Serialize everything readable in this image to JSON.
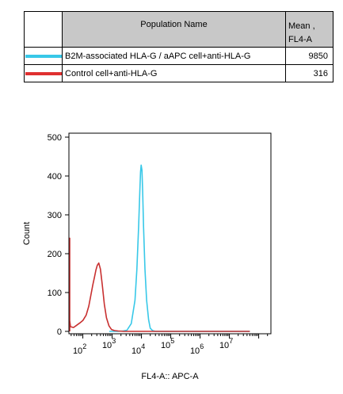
{
  "table": {
    "header_population": "Population Name",
    "header_mean_line1": "Mean ,",
    "header_mean_line2": "FL4-A",
    "rows": [
      {
        "name": "B2M-associated HLA-G / aAPC cell+anti-HLA-G",
        "value": "9850",
        "color": "#38c8e8"
      },
      {
        "name": "Control cell+anti-HLA-G",
        "value": "316",
        "color": "#e03030"
      }
    ]
  },
  "chart_data": {
    "type": "line",
    "title": "",
    "xlabel": "FL4-A:: APC-A",
    "ylabel": "Count",
    "xscale": "log",
    "ylim": [
      0,
      500
    ],
    "yticks": [
      "0",
      "100",
      "200",
      "300",
      "400",
      "500"
    ],
    "xticks": [
      {
        "base": "10",
        "exp": "2",
        "value": 100
      },
      {
        "base": "10",
        "exp": "3",
        "value": 1000
      },
      {
        "base": "10",
        "exp": "4",
        "value": 10000
      },
      {
        "base": "10",
        "exp": "5",
        "value": 100000
      },
      {
        "base": "10",
        "exp": "6",
        "value": 1000000
      },
      {
        "base": "10",
        "exp": "7",
        "value": 10000000
      }
    ],
    "series": [
      {
        "name": "B2M-associated HLA-G / aAPC cell+anti-HLA-G",
        "color": "#38c8e8",
        "x": [
          800,
          1500,
          2400,
          3200,
          4500,
          6000,
          7000,
          8000,
          8800,
          9300,
          9800,
          10400,
          11000,
          11800,
          13200,
          15000,
          17500,
          20000,
          24000,
          30000,
          40000,
          60000,
          100000,
          1000000,
          10000000,
          50000000
        ],
        "y": [
          0,
          0,
          1,
          3,
          20,
          80,
          160,
          270,
          360,
          410,
          428,
          415,
          360,
          270,
          160,
          80,
          30,
          8,
          2,
          0,
          0,
          0,
          0,
          0,
          0,
          0
        ]
      },
      {
        "name": "Control cell+anti-HLA-G",
        "color": "#c83030",
        "x": [
          30,
          30,
          32,
          34,
          38,
          48,
          62,
          80,
          100,
          130,
          160,
          190,
          220,
          250,
          280,
          310,
          350,
          400,
          460,
          540,
          640,
          780,
          950,
          1200,
          1600,
          2500,
          5000,
          20000,
          100000,
          1000000,
          10000000,
          50000000
        ],
        "y": [
          0,
          240,
          75,
          28,
          12,
          10,
          16,
          22,
          28,
          42,
          65,
          95,
          120,
          140,
          158,
          170,
          176,
          160,
          120,
          70,
          35,
          14,
          5,
          2,
          1,
          0,
          0,
          0,
          0,
          0,
          0,
          0
        ]
      }
    ]
  }
}
